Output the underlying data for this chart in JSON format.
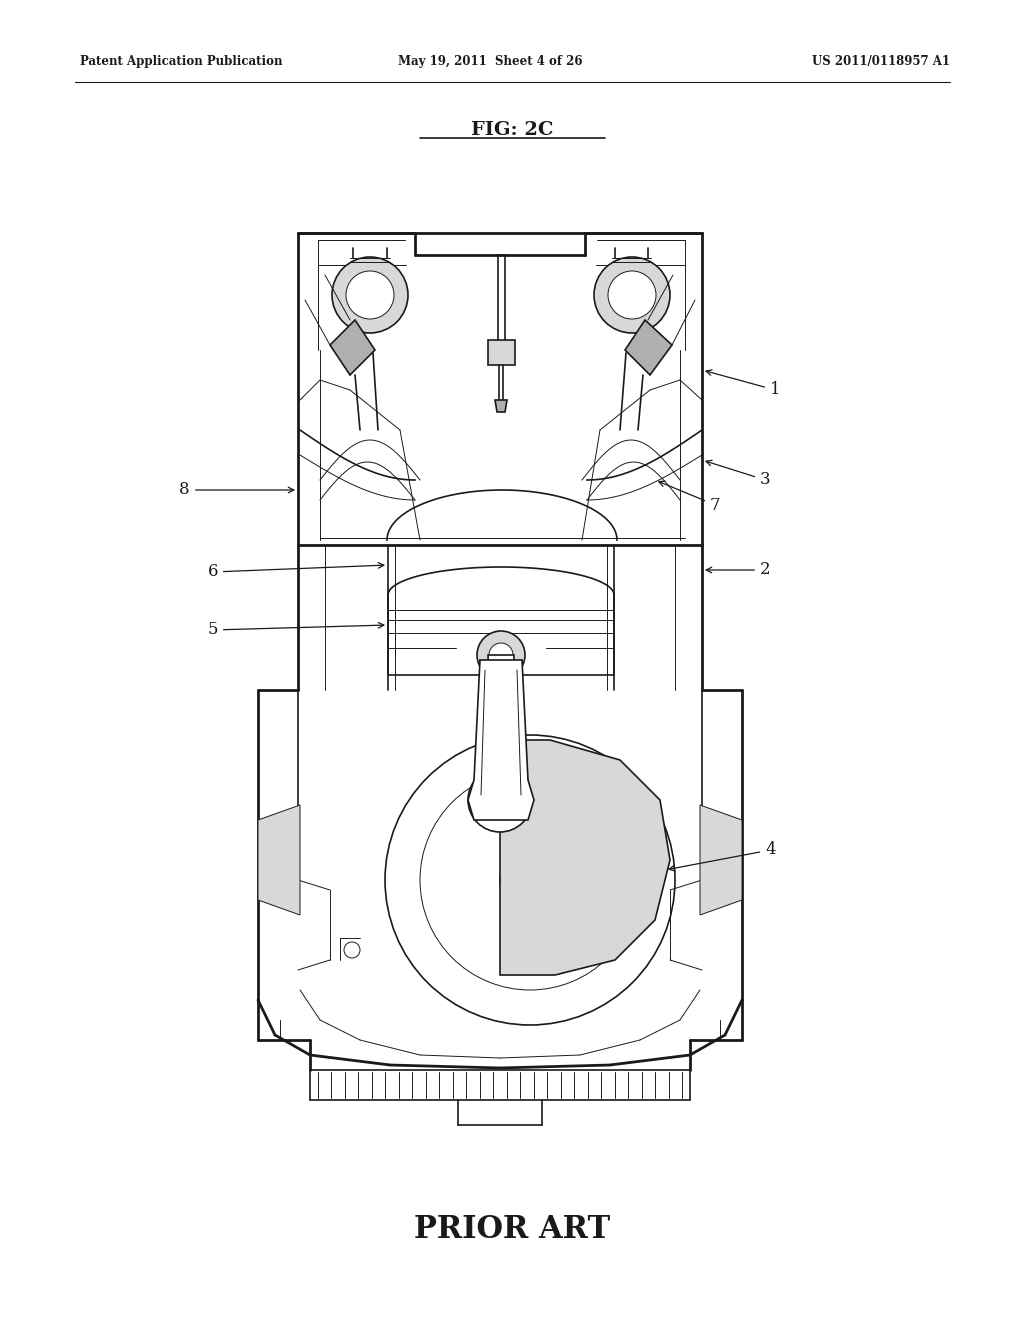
{
  "title": "FIG: 2C",
  "header_left": "Patent Application Publication",
  "header_center": "May 19, 2011  Sheet 4 of 26",
  "header_right": "US 2011/0118957 A1",
  "footer": "PRIOR ART",
  "bg_color": "#ffffff",
  "line_color": "#1a1a1a",
  "gray_light": "#d8d8d8",
  "gray_mid": "#b0b0b0",
  "gray_dark": "#888888"
}
